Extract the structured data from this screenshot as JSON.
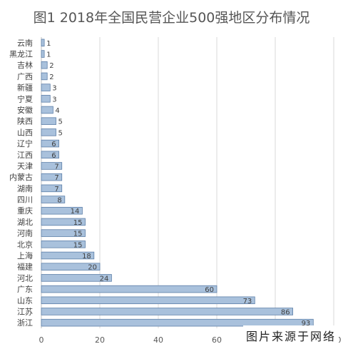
{
  "chart_data": {
    "type": "bar",
    "orientation": "horizontal",
    "title": "图1 2018年全国民营企业500强地区分布情况",
    "categories": [
      "云南",
      "黑龙江",
      "吉林",
      "广西",
      "新疆",
      "宁夏",
      "安徽",
      "陕西",
      "山西",
      "辽宁",
      "江西",
      "天津",
      "内蒙古",
      "湖南",
      "四川",
      "重庆",
      "湖北",
      "河南",
      "北京",
      "上海",
      "福建",
      "河北",
      "广东",
      "山东",
      "江苏",
      "浙江"
    ],
    "values": [
      1,
      1,
      2,
      2,
      3,
      3,
      4,
      5,
      5,
      6,
      6,
      7,
      7,
      7,
      8,
      14,
      15,
      15,
      15,
      18,
      20,
      24,
      60,
      73,
      86,
      93
    ],
    "xlim": [
      0,
      100
    ],
    "xticks": [
      0,
      20,
      40,
      60,
      80,
      100
    ],
    "grid": true,
    "bar_color": "#a9c1dc",
    "bar_edge_color": "#5d7fa8",
    "data_labels": true
  },
  "watermark": "图片来源于网络"
}
